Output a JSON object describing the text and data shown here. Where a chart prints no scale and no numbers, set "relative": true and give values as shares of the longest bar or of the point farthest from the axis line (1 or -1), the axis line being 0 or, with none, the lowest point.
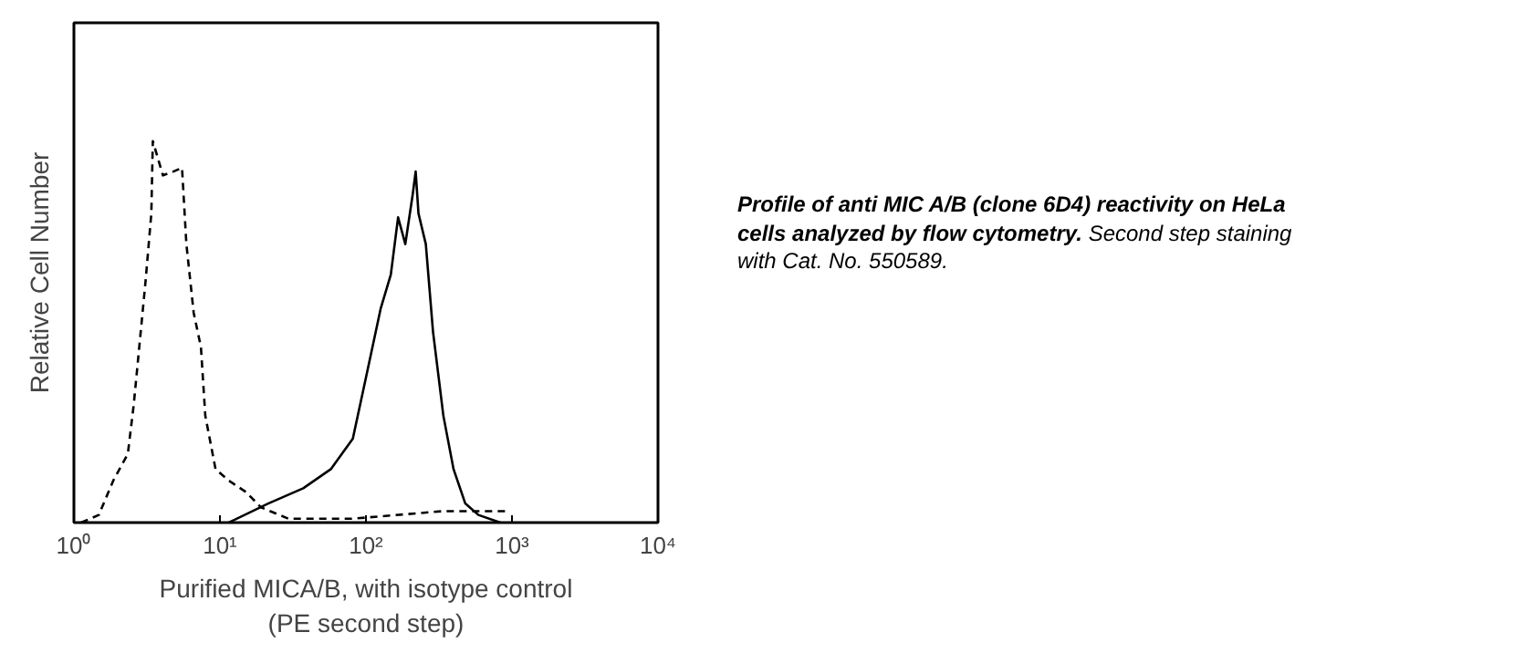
{
  "chart_data": {
    "type": "line",
    "relative": true,
    "log": "x",
    "xlabel": "Purified MICA/B, with isotype control\n(PE second step)",
    "ylabel": "Relative Cell Number",
    "xlim": [
      1,
      10000
    ],
    "xticks": [
      {
        "value": 1,
        "label": "10⁰"
      },
      {
        "value": 10,
        "label": "10¹"
      },
      {
        "value": 100,
        "label": "10²"
      },
      {
        "value": 1000,
        "label": "10³"
      },
      {
        "value": 10000,
        "label": "10⁴"
      }
    ],
    "grid": false,
    "marker": "none",
    "series": [
      {
        "color": "#000000",
        "line_style": "dashed",
        "x": [
          1.12,
          1.48,
          1.86,
          2.34,
          2.57,
          3.09,
          3.39,
          3.47,
          4.07,
          4.79,
          5.5,
          5.89,
          6.61,
          7.41,
          7.94,
          9.33,
          11.5,
          15.1,
          19.1,
          29.5,
          79.4,
          339,
          933
        ],
        "values": [
          0,
          0.02,
          0.11,
          0.18,
          0.31,
          0.63,
          0.81,
          1.0,
          0.91,
          0.92,
          0.93,
          0.73,
          0.55,
          0.46,
          0.28,
          0.14,
          0.11,
          0.08,
          0.04,
          0.01,
          0.01,
          0.03,
          0.03
        ]
      },
      {
        "color": "#000000",
        "line_style": "solid",
        "x": [
          11.5,
          21.4,
          37.2,
          57.5,
          81.3,
          100,
          126,
          148,
          166,
          186,
          209,
          219,
          229,
          257,
          288,
          339,
          398,
          479,
          589,
          832
        ],
        "values": [
          0,
          0.05,
          0.09,
          0.14,
          0.22,
          0.38,
          0.56,
          0.65,
          0.8,
          0.73,
          0.86,
          0.92,
          0.81,
          0.73,
          0.5,
          0.28,
          0.14,
          0.05,
          0.02,
          0
        ]
      }
    ],
    "annotations": [
      "Profile of anti MIC A/B (clone 6D4) reactivity on HeLa cells analyzed by flow cytometry.",
      "Second step staining with Cat. No. 550589."
    ]
  }
}
